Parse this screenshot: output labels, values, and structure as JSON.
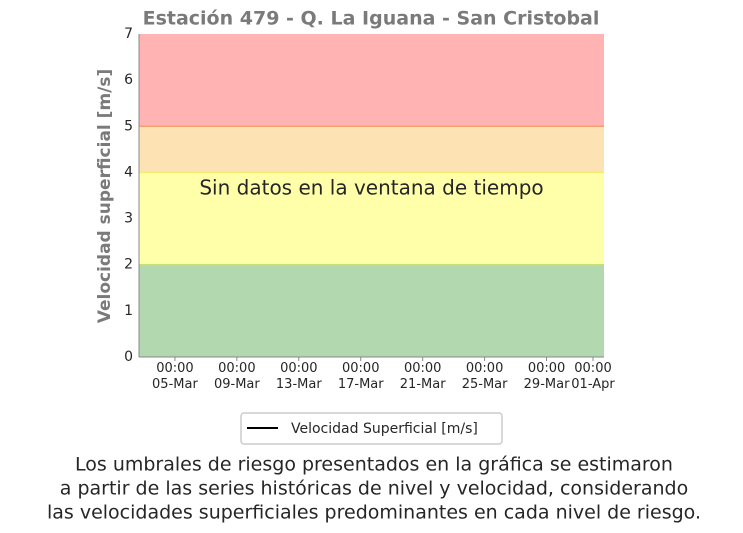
{
  "chart_data": {
    "type": "line",
    "title": "Estación 479 - Q. La Iguana - San Cristobal",
    "y_label": "Velocidad superficial [m/s]",
    "annotation": "Sin datos en la ventana de tiempo",
    "series": [
      {
        "name": "Velocidad Superficial [m/s]",
        "color": "#000000",
        "x": [],
        "values": []
      }
    ],
    "xlim": [
      2.68,
      32.71
    ],
    "xticks": [
      {
        "value": 5,
        "label": "00:00\n05-Mar"
      },
      {
        "value": 9,
        "label": "00:00\n09-Mar"
      },
      {
        "value": 13,
        "label": "00:00\n13-Mar"
      },
      {
        "value": 17,
        "label": "00:00\n17-Mar"
      },
      {
        "value": 21,
        "label": "00:00\n21-Mar"
      },
      {
        "value": 25,
        "label": "00:00\n25-Mar"
      },
      {
        "value": 29,
        "label": "00:00\n29-Mar"
      },
      {
        "value": 32,
        "label": "00:00\n01-Apr"
      }
    ],
    "ylim": [
      0,
      7
    ],
    "yticks": [
      0,
      1,
      2,
      3,
      4,
      5,
      6,
      7
    ],
    "bands": [
      {
        "from": 0,
        "to": 2,
        "color": "#b2d8b0",
        "edge": "#c8e07a"
      },
      {
        "from": 2,
        "to": 4,
        "color": "#ffffaa",
        "edge": "#f0ee70"
      },
      {
        "from": 4,
        "to": 5,
        "color": "#fde3b4",
        "edge": "#f5a070"
      },
      {
        "from": 5,
        "to": 7,
        "color": "#ffb3b3",
        "edge": "#f5a0a0"
      }
    ],
    "legend": "bottom",
    "note": [
      "Los umbrales de riesgo presentados en la gráfica se estimaron",
      "a partir de las series históricas de nivel y velocidad, considerando",
      "las velocidades superficiales predominantes en cada nivel de riesgo."
    ]
  }
}
